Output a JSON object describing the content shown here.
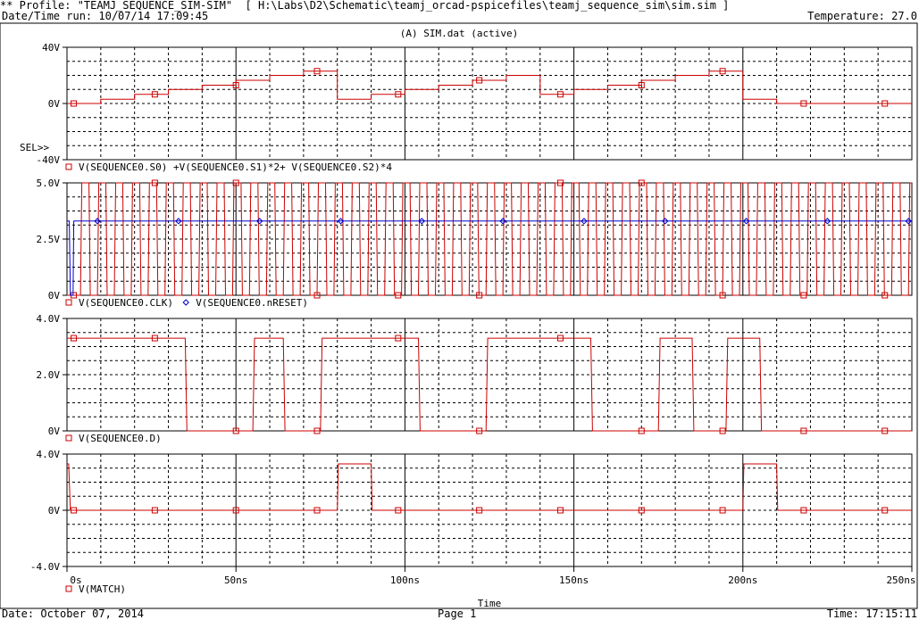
{
  "header": {
    "profile": "** Profile: \"TEAMJ_SEQUENCE_SIM-SIM\"  [ H:\\Labs\\D2\\Schematic\\teamj_orcad-pspicefiles\\teamj_sequence_sim\\sim.sim ]",
    "datetime_run": "Date/Time run: 10/07/14 17:09:45",
    "temperature": "Temperature: 27.0"
  },
  "window_title": "(A) SIM.dat (active)",
  "sel_marker": "SEL>>",
  "x_axis": {
    "ticks": [
      "0s",
      "50ns",
      "100ns",
      "150ns",
      "200ns",
      "250ns"
    ],
    "tick_values": [
      0,
      50,
      100,
      150,
      200,
      250
    ],
    "range": [
      0,
      250
    ],
    "label": "Time"
  },
  "footer": {
    "date": "Date: October 07, 2014",
    "page": "Page 1",
    "time": "Time: 17:15:11"
  },
  "colors": {
    "trace_red": "#cc0000",
    "trace_blue": "#0000cc",
    "grid": "#000000"
  },
  "chart_data": [
    {
      "type": "line",
      "title": "",
      "y_ticks": [
        "40V",
        "0V",
        "-40V"
      ],
      "y_tick_values": [
        40,
        0,
        -40
      ],
      "ylim": [
        -40,
        40
      ],
      "grid": true,
      "legend": [
        "V(SEQUENCE0.S0) +V(SEQUENCE0.S1)*2+ V(SEQUENCE0.S2)*4"
      ],
      "series": [
        {
          "name": "V(SEQUENCE0.S0) +V(SEQUENCE0.S1)*2+ V(SEQUENCE0.S2)*4",
          "color": "red",
          "points": [
            [
              0,
              0
            ],
            [
              10,
              0
            ],
            [
              10,
              3
            ],
            [
              20,
              3
            ],
            [
              20,
              6.5
            ],
            [
              30,
              6.5
            ],
            [
              30,
              10
            ],
            [
              40,
              10
            ],
            [
              40,
              13
            ],
            [
              50,
              13
            ],
            [
              50,
              16.5
            ],
            [
              60,
              16.5
            ],
            [
              60,
              20
            ],
            [
              70,
              20
            ],
            [
              70,
              23
            ],
            [
              80,
              23
            ],
            [
              80,
              3
            ],
            [
              90,
              3
            ],
            [
              90,
              6.5
            ],
            [
              100,
              6.5
            ],
            [
              100,
              10
            ],
            [
              110,
              10
            ],
            [
              110,
              13
            ],
            [
              120,
              13
            ],
            [
              120,
              16.5
            ],
            [
              130,
              16.5
            ],
            [
              130,
              20
            ],
            [
              140,
              20
            ],
            [
              140,
              6.5
            ],
            [
              150,
              6.5
            ],
            [
              150,
              10
            ],
            [
              160,
              10
            ],
            [
              160,
              13
            ],
            [
              170,
              13
            ],
            [
              170,
              16.5
            ],
            [
              180,
              16.5
            ],
            [
              180,
              20
            ],
            [
              190,
              20
            ],
            [
              190,
              23
            ],
            [
              200,
              23
            ],
            [
              200,
              3
            ],
            [
              210,
              3
            ],
            [
              210,
              0
            ],
            [
              250,
              0
            ]
          ]
        }
      ]
    },
    {
      "type": "line",
      "y_ticks": [
        "5.0V",
        "2.5V",
        "0V"
      ],
      "y_tick_values": [
        5,
        2.5,
        0
      ],
      "ylim": [
        0,
        5
      ],
      "grid": true,
      "legend": [
        "V(SEQUENCE0.CLK)",
        "V(SEQUENCE0.nRESET)"
      ],
      "series": [
        {
          "name": "V(SEQUENCE0.CLK)",
          "color": "red",
          "kind": "clock",
          "period_ns": 5,
          "high": 5,
          "low": 0,
          "start": 4
        },
        {
          "name": "V(SEQUENCE0.nRESET)",
          "color": "blue",
          "points": [
            [
              0,
              3.3
            ],
            [
              0.7,
              3.3
            ],
            [
              1,
              0
            ],
            [
              1.8,
              0
            ],
            [
              2,
              3.3
            ],
            [
              250,
              3.3
            ]
          ]
        }
      ]
    },
    {
      "type": "line",
      "y_ticks": [
        "4.0V",
        "2.0V",
        "0V"
      ],
      "y_tick_values": [
        4,
        2,
        0
      ],
      "ylim": [
        0,
        4
      ],
      "grid": true,
      "legend": [
        "V(SEQUENCE0.D)"
      ],
      "series": [
        {
          "name": "V(SEQUENCE0.D)",
          "color": "red",
          "points": [
            [
              0,
              3.3
            ],
            [
              35,
              3.3
            ],
            [
              35.5,
              0
            ],
            [
              55,
              0
            ],
            [
              55.5,
              3.3
            ],
            [
              64,
              3.3
            ],
            [
              64.5,
              0
            ],
            [
              75,
              0
            ],
            [
              75.5,
              3.3
            ],
            [
              104,
              3.3
            ],
            [
              104.5,
              0
            ],
            [
              124,
              0
            ],
            [
              124.5,
              3.3
            ],
            [
              155,
              3.3
            ],
            [
              155.5,
              0
            ],
            [
              175,
              0
            ],
            [
              175.5,
              3.3
            ],
            [
              185,
              3.3
            ],
            [
              185.5,
              0
            ],
            [
              195,
              0
            ],
            [
              195.5,
              3.3
            ],
            [
              205,
              3.3
            ],
            [
              205.5,
              0
            ],
            [
              250,
              0
            ]
          ]
        }
      ]
    },
    {
      "type": "line",
      "y_ticks": [
        "4.0V",
        "0V",
        "-4.0V"
      ],
      "y_tick_values": [
        4,
        0,
        -4
      ],
      "ylim": [
        -4,
        4
      ],
      "grid": true,
      "legend": [
        "V(MATCH)"
      ],
      "series": [
        {
          "name": "V(MATCH)",
          "color": "red",
          "points": [
            [
              0,
              3.3
            ],
            [
              0.5,
              3.3
            ],
            [
              1,
              0
            ],
            [
              80,
              0
            ],
            [
              80.3,
              3.3
            ],
            [
              90,
              3.3
            ],
            [
              90.3,
              0
            ],
            [
              200,
              0
            ],
            [
              200.3,
              3.3
            ],
            [
              210,
              3.3
            ],
            [
              210.3,
              0
            ],
            [
              250,
              0
            ]
          ]
        }
      ]
    }
  ]
}
